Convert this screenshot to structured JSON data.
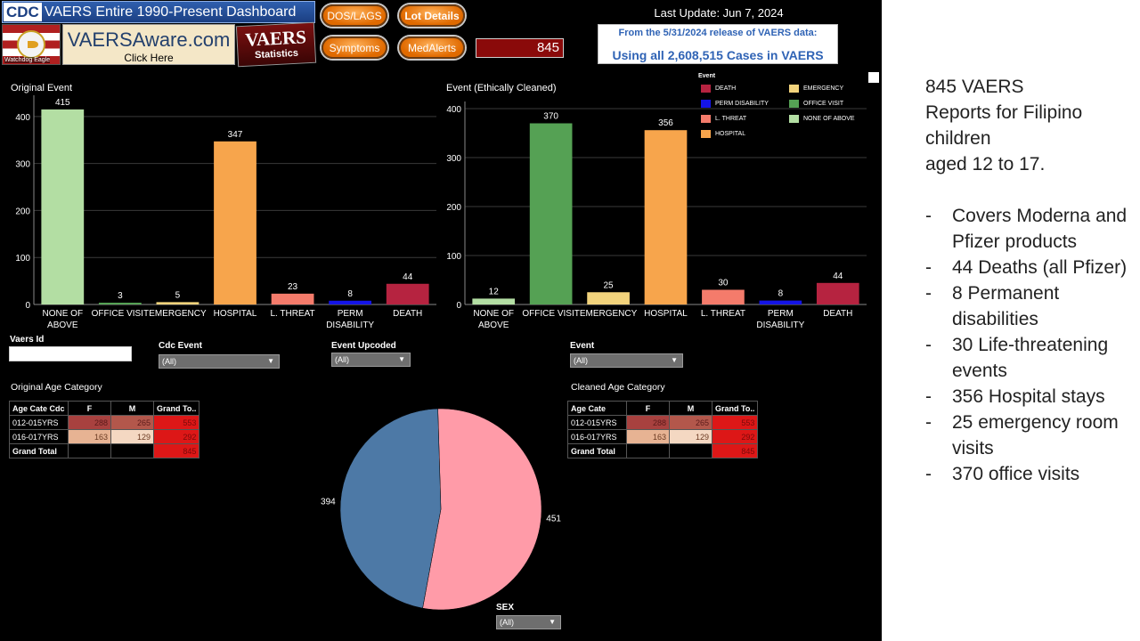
{
  "header": {
    "cdc_logo": "CDC",
    "title": "VAERS Entire 1990-Present Dashboard",
    "eagle_caption": "Watchdog Eagle",
    "vaersaware_main": "VAERSAware.com",
    "vaersaware_sub": "Click Here",
    "vaers_stat_main": "VAERS",
    "vaers_stat_sub": "Statistics",
    "buttons": {
      "dos_lags": "DOS/LAGS",
      "lot_details": "Lot Details",
      "symptoms": "Symptoms",
      "medalerts": "MedAlerts"
    },
    "count": "845",
    "last_update": "Last Update: Jun 7, 2024",
    "release_line1": "From the 5/31/2024 release of VAERS data:",
    "release_line2": "Using all 2,608,515 Cases in VAERS"
  },
  "colors": {
    "none_of_above": "#b3dea3",
    "office_visit": "#55a154",
    "emergency": "#f2d37c",
    "hospital": "#f7a54c",
    "l_threat": "#f47b6b",
    "perm_disability": "#1414e6",
    "death": "#b62340",
    "female": "#ff9ba8",
    "male": "#4d79a6"
  },
  "chart_data": [
    {
      "type": "bar",
      "title": "Original Event",
      "categories": [
        "NONE OF ABOVE",
        "OFFICE VISIT",
        "EMERGENCY",
        "HOSPITAL",
        "L. THREAT",
        "PERM DISABILITY",
        "DEATH"
      ],
      "values": [
        415,
        3,
        5,
        347,
        23,
        8,
        44
      ],
      "yticks": [
        0,
        100,
        200,
        300,
        400
      ],
      "ylim": [
        0,
        430
      ],
      "grid": true
    },
    {
      "type": "bar",
      "title": "Event (Ethically Cleaned)",
      "categories": [
        "NONE OF ABOVE",
        "OFFICE VISIT",
        "EMERGENCY",
        "HOSPITAL",
        "L. THREAT",
        "PERM DISABILITY",
        "DEATH"
      ],
      "values": [
        12,
        370,
        25,
        356,
        30,
        8,
        44
      ],
      "yticks": [
        0,
        100,
        200,
        300,
        400
      ],
      "ylim": [
        0,
        400
      ],
      "grid": true,
      "legend": {
        "title": "Event",
        "placement": "top-right",
        "entries": [
          "DEATH",
          "EMERGENCY",
          "PERM DISABILITY",
          "OFFICE VISIT",
          "L. THREAT",
          "NONE OF ABOVE",
          "HOSPITAL"
        ]
      }
    },
    {
      "type": "pie",
      "labels": [
        "F",
        "M"
      ],
      "values": [
        451,
        394
      ],
      "filter_label": "SEX"
    }
  ],
  "filters": {
    "vaers_id_label": "Vaers Id",
    "cdc_event_label": "Cdc Event",
    "cdc_event_value": "(All)",
    "event_upcoded_label": "Event Upcoded",
    "event_upcoded_value": "(All)",
    "event_label": "Event",
    "event_value": "(All)",
    "sex_label": "SEX",
    "sex_value": "(All)"
  },
  "tables": {
    "original": {
      "title": "Original Age Category",
      "header": [
        "Age Cate Cdc",
        "F",
        "M",
        "Grand To.."
      ],
      "rows": [
        [
          "012-015YRS",
          "288",
          "265",
          "553"
        ],
        [
          "016-017YRS",
          "163",
          "129",
          "292"
        ],
        [
          "Grand Total",
          "",
          "",
          "845"
        ]
      ]
    },
    "cleaned": {
      "title": "Cleaned Age Category",
      "header": [
        "Age Cate",
        "F",
        "M",
        "Grand To.."
      ],
      "rows": [
        [
          "012-015YRS",
          "288",
          "265",
          "553"
        ],
        [
          "016-017YRS",
          "163",
          "129",
          "292"
        ],
        [
          "Grand Total",
          "",
          "",
          "845"
        ]
      ]
    }
  },
  "notes": {
    "intro": [
      "845 VAERS",
      "Reports for Filipino",
      "children",
      "aged 12 to 17."
    ],
    "bullet_marker": "-",
    "bullets": [
      "Covers Moderna and Pfizer products",
      "44 Deaths (all Pfizer)",
      "8 Permanent disabilities",
      "30 Life-threatening events",
      "356 Hospital stays",
      "25 emergency room visits",
      "370 office visits"
    ]
  }
}
